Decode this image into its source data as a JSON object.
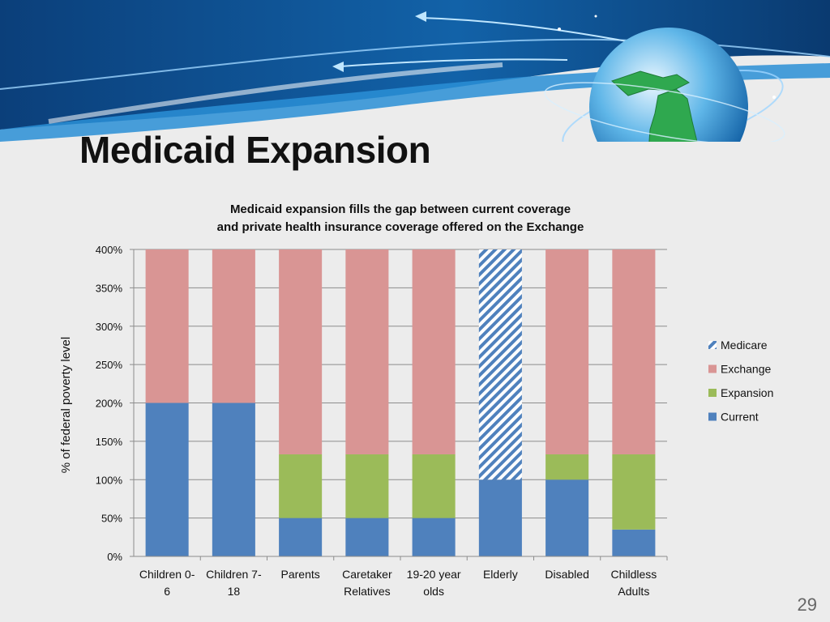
{
  "slide": {
    "title": "Medicaid Expansion",
    "page_number": "29"
  },
  "colors": {
    "current": "#4f81bd",
    "expansion": "#9bbb59",
    "exchange": "#d99594",
    "medicare": "#4f81bd"
  },
  "icons": [
    "michigan-globe-icon"
  ],
  "chart_data": {
    "type": "bar",
    "stacked": true,
    "title_lines": [
      "Medicaid expansion fills the gap between current coverage",
      "and private health insurance coverage offered on the Exchange"
    ],
    "xlabel": "",
    "ylabel": "% of federal poverty level",
    "ylim": [
      0,
      400
    ],
    "yticks": [
      "0%",
      "50%",
      "100%",
      "150%",
      "200%",
      "250%",
      "300%",
      "350%",
      "400%"
    ],
    "grid": true,
    "legend_position": "right",
    "categories": [
      [
        "Children 0-",
        "6"
      ],
      [
        "Children 7-",
        "18"
      ],
      [
        "Parents"
      ],
      [
        "Caretaker",
        "Relatives"
      ],
      [
        "19-20 year",
        "olds"
      ],
      [
        "Elderly"
      ],
      [
        "Disabled"
      ],
      [
        "Childless",
        "Adults"
      ]
    ],
    "series": [
      {
        "name": "Current",
        "key": "current",
        "values": [
          200,
          200,
          50,
          50,
          50,
          100,
          100,
          35
        ]
      },
      {
        "name": "Expansion",
        "key": "expansion",
        "values": [
          0,
          0,
          83,
          83,
          83,
          0,
          33,
          98
        ]
      },
      {
        "name": "Exchange",
        "key": "exchange",
        "values": [
          200,
          200,
          267,
          267,
          267,
          0,
          267,
          267
        ]
      },
      {
        "name": "Medicare",
        "key": "medicare",
        "pattern": "diagonal-hatch",
        "values": [
          0,
          0,
          0,
          0,
          0,
          300,
          0,
          0
        ]
      }
    ],
    "legend_order": [
      "Medicare",
      "Exchange",
      "Expansion",
      "Current"
    ]
  }
}
